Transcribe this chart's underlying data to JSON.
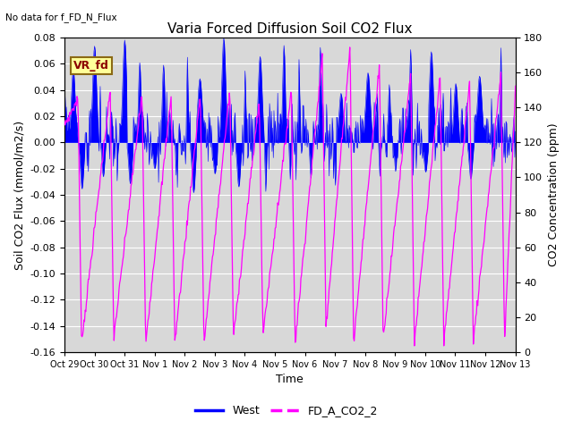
{
  "title": "Varia Forced Diffusion Soil CO2 Flux",
  "no_data_text": "No data for f_FD_N_Flux",
  "xlabel": "Time",
  "ylabel_left": "Soil CO2 Flux (mmol/m2/s)",
  "ylabel_right": "CO2 Concentration (ppm)",
  "ylim_left": [
    -0.16,
    0.08
  ],
  "ylim_right": [
    0,
    180
  ],
  "yticks_left": [
    -0.16,
    -0.14,
    -0.12,
    -0.1,
    -0.08,
    -0.06,
    -0.04,
    -0.02,
    0.0,
    0.02,
    0.04,
    0.06,
    0.08
  ],
  "yticks_right": [
    0,
    20,
    40,
    60,
    80,
    100,
    120,
    140,
    160,
    180
  ],
  "xtick_labels": [
    "Oct 29",
    "Oct 30",
    "Oct 31",
    "Nov 1",
    "Nov 2",
    "Nov 3",
    "Nov 4",
    "Nov 5",
    "Nov 6",
    "Nov 7",
    "Nov 8",
    "Nov 9",
    "Nov 10",
    "Nov 11",
    "Nov 12",
    "Nov 13"
  ],
  "n_days": 15,
  "blue_color": "#0000ff",
  "magenta_color": "#ff00ff",
  "bg_color": "#d8d8d8",
  "legend_blue_label": "West",
  "legend_magenta_label": "FD_A_CO2_2",
  "vr_fd_label": "VR_fd",
  "vr_fd_color": "#8b0000",
  "vr_fd_bg": "#ffff99",
  "vr_fd_border": "#8b6914",
  "title_fontsize": 11,
  "axis_label_fontsize": 9,
  "tick_fontsize": 8,
  "xtick_fontsize": 7,
  "legend_fontsize": 9
}
